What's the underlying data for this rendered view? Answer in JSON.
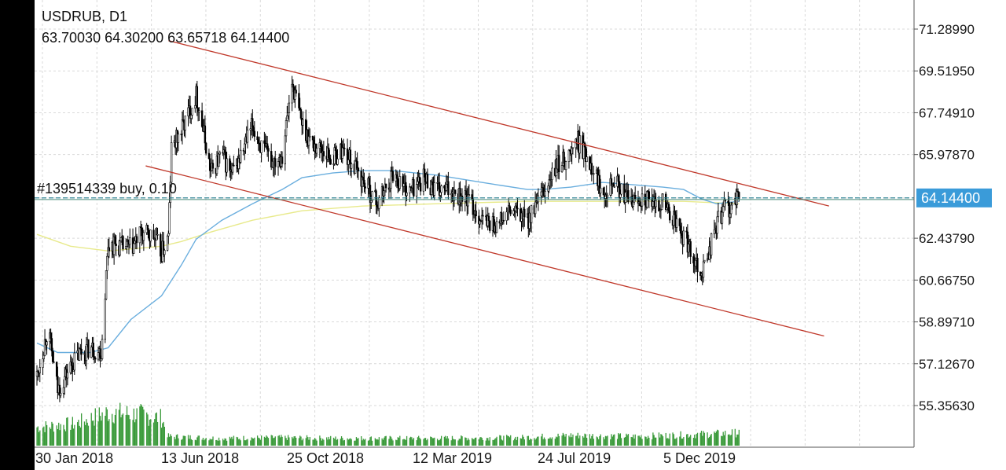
{
  "header": {
    "title": "USDRUB, D1",
    "ohlc": "63.70030 64.30200 63.65718 64.14400"
  },
  "order": {
    "label": "#139514339 buy, 0.10"
  },
  "current_price": "64.14400",
  "colors": {
    "background": "#ffffff",
    "grid": "#d9d9d9",
    "candle": "#000000",
    "volume": "#3a9a3a",
    "ma_fast": "#6aaede",
    "ma_slow": "#e8ea8c",
    "channel": "#c0392b",
    "price_line": "#1f7a8c",
    "price_tag": "#3a9bd9"
  },
  "chart_data": {
    "type": "candlestick",
    "symbol": "USDRUB",
    "timeframe": "D1",
    "y_tick_labels": [
      "71.28990",
      "69.51950",
      "67.74910",
      "65.97870",
      "64.14400",
      "62.43790",
      "60.66750",
      "58.89710",
      "57.12670",
      "55.35630"
    ],
    "ylim": [
      54.8,
      71.9
    ],
    "x_tick_labels": [
      "30 Jan 2018",
      "13 Jun 2018",
      "25 Oct 2018",
      "12 Mar 2019",
      "24 Jul 2019",
      "5 Dec 2019"
    ],
    "grid": true,
    "close_path": [
      [
        "2018-01-30",
        56.6
      ],
      [
        "2018-02-10",
        58.6
      ],
      [
        "2018-02-20",
        56.0
      ],
      [
        "2018-03-05",
        57.0
      ],
      [
        "2018-03-15",
        57.6
      ],
      [
        "2018-03-25",
        57.8
      ],
      [
        "2018-04-05",
        57.6
      ],
      [
        "2018-04-12",
        62.2
      ],
      [
        "2018-04-25",
        62.1
      ],
      [
        "2018-05-05",
        62.0
      ],
      [
        "2018-05-15",
        62.6
      ],
      [
        "2018-05-28",
        62.5
      ],
      [
        "2018-06-05",
        61.8
      ],
      [
        "2018-06-12",
        62.5
      ],
      [
        "2018-06-15",
        66.2
      ],
      [
        "2018-06-25",
        67.0
      ],
      [
        "2018-07-05",
        68.0
      ],
      [
        "2018-07-10",
        68.5
      ],
      [
        "2018-07-15",
        67.5
      ],
      [
        "2018-07-25",
        65.2
      ],
      [
        "2018-08-05",
        66.0
      ],
      [
        "2018-08-15",
        65.1
      ],
      [
        "2018-08-25",
        66.0
      ],
      [
        "2018-09-05",
        67.2
      ],
      [
        "2018-09-15",
        66.2
      ],
      [
        "2018-09-25",
        65.7
      ],
      [
        "2018-10-05",
        66.0
      ],
      [
        "2018-10-15",
        69.0
      ],
      [
        "2018-10-25",
        67.3
      ],
      [
        "2018-11-05",
        66.4
      ],
      [
        "2018-11-15",
        66.2
      ],
      [
        "2018-11-25",
        65.8
      ],
      [
        "2018-12-05",
        66.2
      ],
      [
        "2018-12-15",
        65.6
      ],
      [
        "2018-12-25",
        64.9
      ],
      [
        "2019-01-10",
        63.9
      ],
      [
        "2019-01-25",
        65.2
      ],
      [
        "2019-02-10",
        64.4
      ],
      [
        "2019-02-25",
        65.0
      ],
      [
        "2019-03-12",
        64.4
      ],
      [
        "2019-03-25",
        64.5
      ],
      [
        "2019-04-10",
        64.1
      ],
      [
        "2019-04-25",
        63.2
      ],
      [
        "2019-05-10",
        63.0
      ],
      [
        "2019-05-25",
        63.6
      ],
      [
        "2019-06-10",
        63.2
      ],
      [
        "2019-06-25",
        64.2
      ],
      [
        "2019-07-10",
        65.5
      ],
      [
        "2019-07-24",
        66.0
      ],
      [
        "2019-07-30",
        66.6
      ],
      [
        "2019-08-05",
        66.2
      ],
      [
        "2019-08-15",
        65.5
      ],
      [
        "2019-08-25",
        64.4
      ],
      [
        "2019-09-05",
        65.0
      ],
      [
        "2019-09-15",
        64.2
      ],
      [
        "2019-09-25",
        64.0
      ],
      [
        "2019-10-05",
        64.2
      ],
      [
        "2019-10-15",
        63.8
      ],
      [
        "2019-10-25",
        64.0
      ],
      [
        "2019-11-05",
        63.2
      ],
      [
        "2019-11-15",
        62.5
      ],
      [
        "2019-11-25",
        61.7
      ],
      [
        "2019-12-03",
        61.0
      ],
      [
        "2019-12-10",
        61.8
      ],
      [
        "2019-12-18",
        63.0
      ],
      [
        "2019-12-25",
        63.7
      ],
      [
        "2020-01-05",
        63.8
      ],
      [
        "2020-01-10",
        64.14
      ]
    ],
    "ma_fast": [
      [
        "2018-01-30",
        58.0
      ],
      [
        "2018-02-20",
        57.6
      ],
      [
        "2018-03-25",
        57.6
      ],
      [
        "2018-04-12",
        57.8
      ],
      [
        "2018-05-05",
        59.0
      ],
      [
        "2018-06-05",
        60.0
      ],
      [
        "2018-06-25",
        61.3
      ],
      [
        "2018-07-10",
        62.4
      ],
      [
        "2018-08-05",
        63.2
      ],
      [
        "2018-09-05",
        63.9
      ],
      [
        "2018-10-05",
        64.5
      ],
      [
        "2018-10-25",
        65.0
      ],
      [
        "2018-11-25",
        65.2
      ],
      [
        "2018-12-25",
        65.3
      ],
      [
        "2019-01-25",
        65.3
      ],
      [
        "2019-03-12",
        65.1
      ],
      [
        "2019-04-25",
        64.8
      ],
      [
        "2019-06-10",
        64.5
      ],
      [
        "2019-06-25",
        64.5
      ],
      [
        "2019-07-24",
        64.6
      ],
      [
        "2019-08-25",
        64.8
      ],
      [
        "2019-09-25",
        64.7
      ],
      [
        "2019-10-25",
        64.6
      ],
      [
        "2019-11-15",
        64.5
      ],
      [
        "2019-12-03",
        64.1
      ],
      [
        "2019-12-18",
        63.9
      ],
      [
        "2020-01-10",
        64.0
      ]
    ],
    "ma_slow": [
      [
        "2018-01-30",
        62.6
      ],
      [
        "2018-03-05",
        62.1
      ],
      [
        "2018-04-12",
        61.9
      ],
      [
        "2018-06-05",
        62.1
      ],
      [
        "2018-06-25",
        62.3
      ],
      [
        "2018-07-25",
        62.7
      ],
      [
        "2018-09-05",
        63.2
      ],
      [
        "2018-10-25",
        63.6
      ],
      [
        "2018-12-25",
        63.8
      ],
      [
        "2019-03-12",
        63.9
      ],
      [
        "2019-06-10",
        64.0
      ],
      [
        "2019-08-25",
        64.0
      ],
      [
        "2019-11-15",
        64.0
      ],
      [
        "2020-01-10",
        63.9
      ]
    ],
    "channel_upper": [
      [
        "2018-06-12",
        70.8
      ],
      [
        "2020-04-10",
        63.8
      ]
    ],
    "channel_lower": [
      [
        "2018-05-20",
        65.5
      ],
      [
        "2020-04-05",
        58.3
      ]
    ],
    "price_line": 64.144,
    "volume_levels": [
      [
        "2018-01-30",
        0.5
      ],
      [
        "2018-03-10",
        0.6
      ],
      [
        "2018-04-12",
        0.9
      ],
      [
        "2018-05-15",
        0.85
      ],
      [
        "2018-06-05",
        0.75
      ],
      [
        "2018-06-12",
        0.25
      ],
      [
        "2018-08-01",
        0.2
      ],
      [
        "2018-10-01",
        0.22
      ],
      [
        "2018-12-01",
        0.2
      ],
      [
        "2019-03-01",
        0.2
      ],
      [
        "2019-06-01",
        0.22
      ],
      [
        "2019-07-24",
        0.28
      ],
      [
        "2019-09-25",
        0.25
      ],
      [
        "2019-11-25",
        0.3
      ],
      [
        "2020-01-10",
        0.35
      ]
    ]
  }
}
